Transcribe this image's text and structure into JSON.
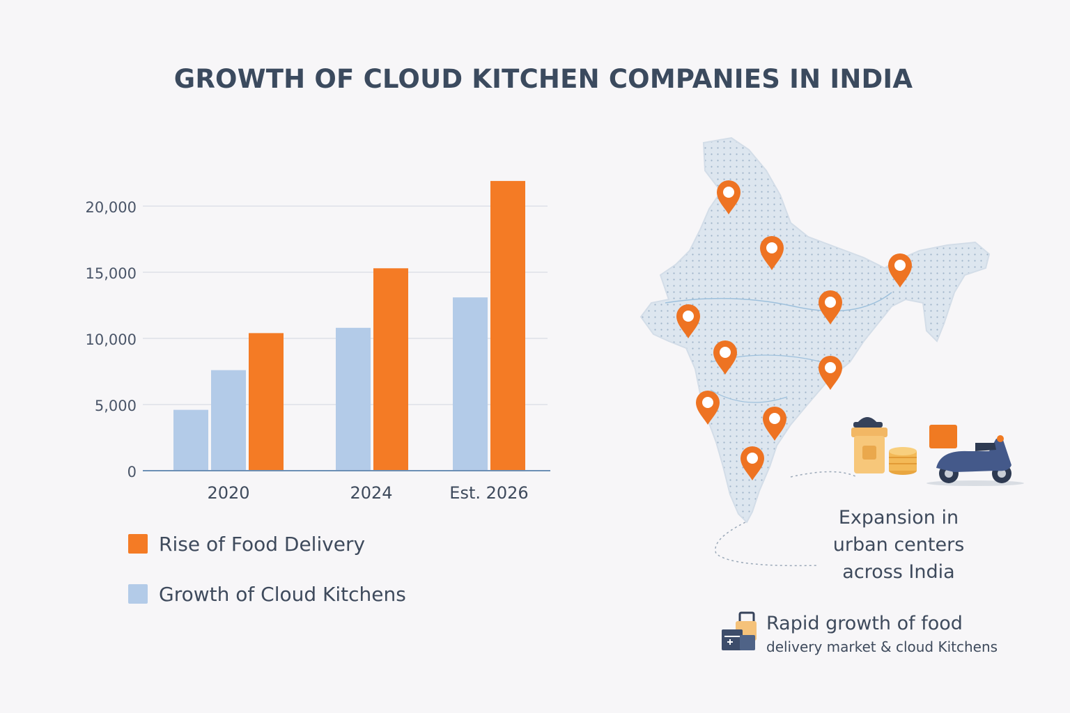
{
  "chart_data": {
    "type": "bar",
    "title": "GROWTH OF CLOUD KITCHEN COMPANIES IN INDIA",
    "categories": [
      "2020",
      "2024",
      "Est. 2026"
    ],
    "series": [
      {
        "name": "Growth of Cloud Kitchens",
        "color": "#b3cbe8",
        "values": [
          4600,
          10800,
          13100
        ]
      },
      {
        "name": "Rise of Food Delivery",
        "color": "#f47b25",
        "values": [
          10400,
          15300,
          21900
        ]
      }
    ],
    "extra_bar_2020": {
      "series": "Growth of Cloud Kitchens",
      "value": 7600
    },
    "y_ticks": [
      "0",
      "5,000",
      "10,000",
      "15,000",
      "20,000"
    ],
    "ylim": [
      0,
      22000
    ],
    "grid": true,
    "legend_position": "bottom-left"
  },
  "legend": [
    {
      "label": "Rise of Food Delivery",
      "color": "#f47b25"
    },
    {
      "label": "Growth of Cloud Kitchens",
      "color": "#b3cbe8"
    }
  ],
  "map": {
    "caption": [
      "Expansion in",
      "urban centers",
      "across India"
    ],
    "pin_color": "#ee7322"
  },
  "footnote": {
    "line1": "Rapid growth of food",
    "line2": "delivery market & cloud Kitchens"
  }
}
